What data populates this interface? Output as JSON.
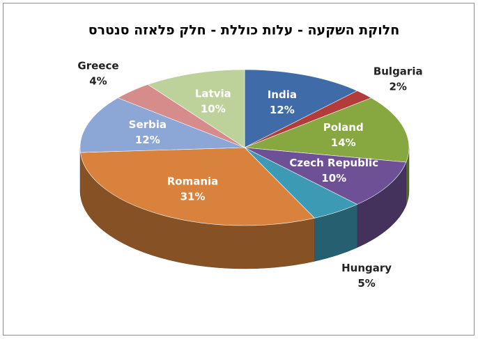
{
  "chart_data": {
    "type": "pie",
    "title": "חלוקת השקעה - עלות כוללת - חלק פלאזה סנטרס",
    "categories": [
      "India",
      "Bulgaria",
      "Poland",
      "Czech Republic",
      "Hungary",
      "Romania",
      "Serbia",
      "Greece",
      "Latvia"
    ],
    "values": [
      12,
      2,
      14,
      10,
      5,
      31,
      12,
      4,
      10
    ],
    "value_labels": [
      "12%",
      "2%",
      "14%",
      "10%",
      "5%",
      "31%",
      "12%",
      "4%",
      "10%"
    ],
    "colors": [
      "#3f6ba9",
      "#b23c3a",
      "#87a840",
      "#6d5096",
      "#3c9ab4",
      "#d9823e",
      "#8ca7d5",
      "#d58c8a",
      "#bdd19b"
    ]
  }
}
